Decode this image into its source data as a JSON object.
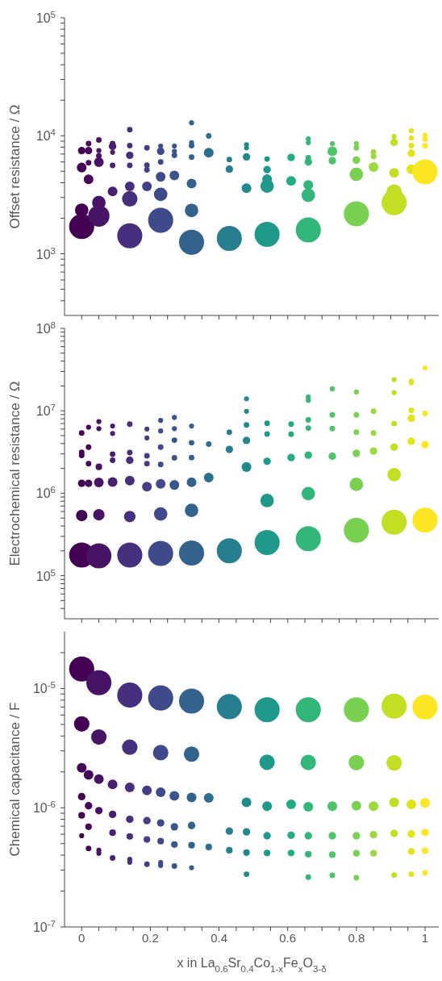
{
  "chart_data": [
    {
      "type": "bubble",
      "ylabel": "Offset resistance / Ω",
      "log": true,
      "marker": "circle",
      "tick_labels": "y",
      "xlim": [
        -0.05,
        1.04
      ],
      "xticks": [
        {
          "value": 0,
          "label": null
        },
        {
          "value": 0.05,
          "label": null
        },
        {
          "value": 0.1,
          "label": null
        },
        {
          "value": 0.15,
          "label": null
        },
        {
          "value": 0.2,
          "label": null
        },
        {
          "value": 0.25,
          "label": null
        },
        {
          "value": 0.3,
          "label": null
        },
        {
          "value": 0.35,
          "label": null
        },
        {
          "value": 0.4,
          "label": null
        },
        {
          "value": 0.45,
          "label": null
        },
        {
          "value": 0.5,
          "label": null
        },
        {
          "value": 0.55,
          "label": null
        },
        {
          "value": 0.6,
          "label": null
        },
        {
          "value": 0.65,
          "label": null
        },
        {
          "value": 0.7,
          "label": null
        },
        {
          "value": 0.75,
          "label": null
        },
        {
          "value": 0.8,
          "label": null
        },
        {
          "value": 0.85,
          "label": null
        },
        {
          "value": 0.9,
          "label": null
        },
        {
          "value": 0.95,
          "label": null
        },
        {
          "value": 1,
          "label": null
        }
      ],
      "ylim": [
        300,
        100000
      ],
      "yticks": [
        {
          "value": 400,
          "label": null
        },
        {
          "value": 500,
          "label": null
        },
        {
          "value": 600,
          "label": null
        },
        {
          "value": 700,
          "label": null
        },
        {
          "value": 800,
          "label": null
        },
        {
          "value": 900,
          "label": null
        },
        {
          "value": 1000,
          "label": "10$^{3}$"
        },
        {
          "value": 2000,
          "label": null
        },
        {
          "value": 3000,
          "label": null
        },
        {
          "value": 4000,
          "label": null
        },
        {
          "value": 5000,
          "label": null
        },
        {
          "value": 6000,
          "label": null
        },
        {
          "value": 7000,
          "label": null
        },
        {
          "value": 8000,
          "label": null
        },
        {
          "value": 9000,
          "label": null
        },
        {
          "value": 10000,
          "label": "10$^{4}$"
        },
        {
          "value": 20000,
          "label": null
        },
        {
          "value": 30000,
          "label": null
        },
        {
          "value": 40000,
          "label": null
        },
        {
          "value": 50000,
          "label": null
        },
        {
          "value": 60000,
          "label": null
        },
        {
          "value": 70000,
          "label": null
        },
        {
          "value": 80000,
          "label": null
        },
        {
          "value": 90000,
          "label": null
        },
        {
          "value": 100000,
          "label": "10$^{5}$"
        }
      ],
      "series": [
        {
          "color": "#440154",
          "x": [
            0,
            0,
            0,
            0
          ],
          "values": [
            7480,
            5380,
            2340,
            1700
          ],
          "sizes": [
            0.09,
            0.15,
            0.29,
            1
          ]
        },
        {
          "color": "#45085b",
          "x": [
            0.02,
            0.02,
            0.02,
            0.02
          ],
          "values": [
            8570,
            7480,
            5900,
            4280
          ],
          "sizes": [
            0.05,
            0.09,
            0.05,
            0.15
          ]
        },
        {
          "color": "#471365",
          "x": [
            0.05,
            0.05,
            0.05,
            0.05,
            0.05,
            0.05
          ],
          "values": [
            9200,
            7480,
            6760,
            5970,
            2710,
            2090
          ],
          "sizes": [
            0.05,
            0.04,
            0.05,
            0.15,
            0.29,
            0.72
          ]
        },
        {
          "color": "#48206f",
          "x": [
            0.09,
            0.09,
            0.09,
            0.09,
            0.09
          ],
          "values": [
            8570,
            8130,
            7230,
            5610,
            3380
          ],
          "sizes": [
            0.05,
            0.09,
            0.04,
            0.05,
            0.15
          ]
        },
        {
          "color": "#46307e",
          "x": [
            0.14,
            0.14,
            0.14,
            0.14,
            0.14,
            0.14,
            0.14
          ],
          "values": [
            11270,
            8260,
            6820,
            5610,
            3730,
            2920,
            1420
          ],
          "sizes": [
            0.05,
            0.05,
            0.09,
            0.05,
            0.15,
            0.38,
            1
          ]
        },
        {
          "color": "#433e85",
          "x": [
            0.19,
            0.19,
            0.19,
            0.19
          ],
          "values": [
            7890,
            5640,
            5140,
            3730
          ],
          "sizes": [
            0.05,
            0.05,
            0.05,
            0.15
          ]
        },
        {
          "color": "#3e4a89",
          "x": [
            0.23,
            0.23,
            0.23,
            0.23,
            0.23,
            0.23
          ],
          "values": [
            8180,
            7380,
            5990,
            4490,
            3190,
            1920
          ],
          "sizes": [
            0.04,
            0.09,
            0.05,
            0.15,
            0.29,
            1
          ]
        },
        {
          "color": "#39558c",
          "x": [
            0.27,
            0.27,
            0.27,
            0.27
          ],
          "values": [
            8180,
            7380,
            6820,
            4610
          ],
          "sizes": [
            0.04,
            0.04,
            0.05,
            0.15
          ]
        },
        {
          "color": "#33628d",
          "x": [
            0.32,
            0.32,
            0.32,
            0.32,
            0.32,
            0.32,
            0.32
          ],
          "values": [
            12880,
            8740,
            8260,
            6580,
            3930,
            2330,
            1250
          ],
          "sizes": [
            0.04,
            0.04,
            0.05,
            0.05,
            0.15,
            0.29,
            1
          ]
        },
        {
          "color": "#2d6f8e",
          "x": [
            0.37,
            0.37
          ],
          "values": [
            9950,
            7190
          ],
          "sizes": [
            0.05,
            0.15
          ]
        },
        {
          "color": "#277e8e",
          "x": [
            0.43,
            0.43,
            0.43
          ],
          "values": [
            6280,
            5210,
            1350
          ],
          "sizes": [
            0.05,
            0.09,
            1
          ]
        },
        {
          "color": "#228a8d",
          "x": [
            0.48,
            0.48,
            0.48,
            0.48
          ],
          "values": [
            8400,
            7890,
            6620,
            3600
          ],
          "sizes": [
            0.04,
            0.04,
            0.09,
            0.15
          ]
        },
        {
          "color": "#1f9a8a",
          "x": [
            0.54,
            0.54,
            0.54,
            0.54,
            0.54
          ],
          "values": [
            6350,
            5160,
            4290,
            3750,
            1460
          ],
          "sizes": [
            0.05,
            0.09,
            0.15,
            0.29,
            1
          ]
        },
        {
          "color": "#23ab82",
          "x": [
            0.61,
            0.61
          ],
          "values": [
            6550,
            4140
          ],
          "sizes": [
            0.09,
            0.15
          ]
        },
        {
          "color": "#32b67a",
          "x": [
            0.66,
            0.66,
            0.66,
            0.66,
            0.66,
            0.66,
            0.66
          ],
          "values": [
            9400,
            8740,
            6510,
            5990,
            3830,
            3130,
            1590
          ],
          "sizes": [
            0.04,
            0.04,
            0.05,
            0.09,
            0.15,
            0.29,
            1
          ]
        },
        {
          "color": "#50c46a",
          "x": [
            0.73,
            0.73,
            0.73
          ],
          "values": [
            8570,
            7380,
            6150
          ],
          "sizes": [
            0.04,
            0.15,
            0.09
          ]
        },
        {
          "color": "#7ad151",
          "x": [
            0.8,
            0.8,
            0.8,
            0.8,
            0.8
          ],
          "values": [
            8600,
            7890,
            6220,
            4710,
            2180
          ],
          "sizes": [
            0.04,
            0.05,
            0.09,
            0.29,
            1
          ]
        },
        {
          "color": "#9bd93c",
          "x": [
            0.85,
            0.85,
            0.85
          ],
          "values": [
            7260,
            6680,
            5440
          ],
          "sizes": [
            0.05,
            0.05,
            0.15
          ]
        },
        {
          "color": "#c2df23",
          "x": [
            0.91,
            0.91,
            0.91,
            0.91,
            0.91
          ],
          "values": [
            9850,
            8790,
            4850,
            3330,
            2710
          ],
          "sizes": [
            0.04,
            0.09,
            0.15,
            0.38,
            1
          ]
        },
        {
          "color": "#e2e418",
          "x": [
            0.96,
            0.96,
            0.96,
            0.96,
            0.96
          ],
          "values": [
            11030,
            9550,
            8260,
            7110,
            5210
          ],
          "sizes": [
            0.04,
            0.04,
            0.05,
            0.09,
            0.15
          ]
        },
        {
          "color": "#fde725",
          "x": [
            1,
            1,
            1,
            1
          ],
          "values": [
            10100,
            9350,
            8220,
            4950
          ],
          "sizes": [
            0.04,
            0.05,
            0.05,
            1
          ]
        }
      ]
    },
    {
      "type": "bubble",
      "ylabel": "Electrochemical resistance / Ω",
      "log": true,
      "marker": "circle",
      "tick_labels": "y",
      "xlim": [
        -0.05,
        1.04
      ],
      "xticks": [
        {
          "value": 0,
          "label": null
        },
        {
          "value": 0.05,
          "label": null
        },
        {
          "value": 0.1,
          "label": null
        },
        {
          "value": 0.15,
          "label": null
        },
        {
          "value": 0.2,
          "label": null
        },
        {
          "value": 0.25,
          "label": null
        },
        {
          "value": 0.3,
          "label": null
        },
        {
          "value": 0.35,
          "label": null
        },
        {
          "value": 0.4,
          "label": null
        },
        {
          "value": 0.45,
          "label": null
        },
        {
          "value": 0.5,
          "label": null
        },
        {
          "value": 0.55,
          "label": null
        },
        {
          "value": 0.6,
          "label": null
        },
        {
          "value": 0.65,
          "label": null
        },
        {
          "value": 0.7,
          "label": null
        },
        {
          "value": 0.75,
          "label": null
        },
        {
          "value": 0.8,
          "label": null
        },
        {
          "value": 0.85,
          "label": null
        },
        {
          "value": 0.9,
          "label": null
        },
        {
          "value": 0.95,
          "label": null
        },
        {
          "value": 1,
          "label": null
        }
      ],
      "ylim": [
        30000,
        100000000
      ],
      "yticks": [
        {
          "value": 40000,
          "label": null
        },
        {
          "value": 50000,
          "label": null
        },
        {
          "value": 60000,
          "label": null
        },
        {
          "value": 70000,
          "label": null
        },
        {
          "value": 80000,
          "label": null
        },
        {
          "value": 90000,
          "label": null
        },
        {
          "value": 100000,
          "label": "10$^{5}$"
        },
        {
          "value": 200000,
          "label": null
        },
        {
          "value": 300000,
          "label": null
        },
        {
          "value": 400000,
          "label": null
        },
        {
          "value": 500000,
          "label": null
        },
        {
          "value": 600000,
          "label": null
        },
        {
          "value": 700000,
          "label": null
        },
        {
          "value": 800000,
          "label": null
        },
        {
          "value": 900000,
          "label": null
        },
        {
          "value": 1000000,
          "label": "10$^{6}$"
        },
        {
          "value": 2000000,
          "label": null
        },
        {
          "value": 3000000,
          "label": null
        },
        {
          "value": 4000000,
          "label": null
        },
        {
          "value": 5000000,
          "label": null
        },
        {
          "value": 6000000,
          "label": null
        },
        {
          "value": 7000000,
          "label": null
        },
        {
          "value": 8000000,
          "label": null
        },
        {
          "value": 9000000,
          "label": null
        },
        {
          "value": 10000000,
          "label": "10$^{7}$"
        },
        {
          "value": 20000000,
          "label": null
        },
        {
          "value": 30000000,
          "label": null
        },
        {
          "value": 40000000,
          "label": null
        },
        {
          "value": 50000000,
          "label": null
        },
        {
          "value": 60000000,
          "label": null
        },
        {
          "value": 70000000,
          "label": null
        },
        {
          "value": 80000000,
          "label": null
        },
        {
          "value": 90000000,
          "label": null
        },
        {
          "value": 100000000,
          "label": "10$^{8}$"
        }
      ],
      "series": [
        {
          "color": "#440154",
          "x": [
            0,
            0,
            0,
            0,
            0,
            0
          ],
          "values": [
            5380000.0,
            3130000.0,
            2880000.0,
            1320000.0,
            536000.0,
            178000.0
          ],
          "sizes": [
            0.05,
            0.05,
            0.05,
            0.09,
            0.21,
            1
          ]
        },
        {
          "color": "#45085b",
          "x": [
            0.02,
            0.02,
            0.02,
            0.02
          ],
          "values": [
            6310000.0,
            3620000.0,
            2280000.0,
            1320000.0
          ],
          "sizes": [
            0.04,
            0.05,
            0.05,
            0.09
          ]
        },
        {
          "color": "#471365",
          "x": [
            0.05,
            0.05,
            0.05,
            0.05,
            0.05,
            0.05
          ],
          "values": [
            7390000.0,
            6080000.0,
            2090000.0,
            1350000.0,
            548000.0,
            174000.0
          ],
          "sizes": [
            0.04,
            0.04,
            0.07,
            0.15,
            0.21,
            1
          ]
        },
        {
          "color": "#48206f",
          "x": [
            0.09,
            0.09,
            0.09,
            0.09,
            0.09
          ],
          "values": [
            6530000.0,
            5310000.0,
            2980000.0,
            2510000.0,
            1370000.0
          ],
          "sizes": [
            0.04,
            0.04,
            0.05,
            0.05,
            0.15
          ]
        },
        {
          "color": "#46307e",
          "x": [
            0.14,
            0.14,
            0.14,
            0.14,
            0.14,
            0.14
          ],
          "values": [
            6870000.0,
            3110000.0,
            2510000.0,
            1420000.0,
            521000.0,
            178000.0
          ],
          "sizes": [
            0.05,
            0.05,
            0.09,
            0.15,
            0.21,
            1
          ]
        },
        {
          "color": "#433e85",
          "x": [
            0.19,
            0.19,
            0.19,
            0.19,
            0.19
          ],
          "values": [
            6000000.0,
            4690000.0,
            2850000.0,
            2280000.0,
            1200000.0
          ],
          "sizes": [
            0.04,
            0.04,
            0.05,
            0.05,
            0.15
          ]
        },
        {
          "color": "#3e4a89",
          "x": [
            0.23,
            0.23,
            0.23,
            0.23,
            0.23,
            0.23,
            0.23
          ],
          "values": [
            7660000.0,
            5700000.0,
            3620000.0,
            2230000.0,
            1300000.0,
            560000.0,
            186000.0
          ],
          "sizes": [
            0.04,
            0.04,
            0.05,
            0.05,
            0.15,
            0.29,
            1
          ]
        },
        {
          "color": "#39558c",
          "x": [
            0.27,
            0.27,
            0.27,
            0.27,
            0.27
          ],
          "values": [
            8300000.0,
            6080000.0,
            4400000.0,
            2690000.0,
            1260000.0
          ],
          "sizes": [
            0.04,
            0.04,
            0.05,
            0.05,
            0.15
          ]
        },
        {
          "color": "#33628d",
          "x": [
            0.32,
            0.32,
            0.32,
            0.32,
            0.32,
            0.32
          ],
          "values": [
            6530000.0,
            4090000.0,
            2710000.0,
            1360000.0,
            619000.0,
            188000.0
          ],
          "sizes": [
            0.04,
            0.05,
            0.05,
            0.15,
            0.29,
            1
          ]
        },
        {
          "color": "#2d6f8e",
          "x": [
            0.37,
            0.37
          ],
          "values": [
            3950000.0,
            1550000.0
          ],
          "sizes": [
            0.05,
            0.15
          ]
        },
        {
          "color": "#277e8e",
          "x": [
            0.43,
            0.43,
            0.43
          ],
          "values": [
            5500000.0,
            3400000.0,
            200000.0
          ],
          "sizes": [
            0.05,
            0.09,
            1
          ]
        },
        {
          "color": "#228a8d",
          "x": [
            0.48,
            0.48,
            0.48,
            0.48,
            0.48
          ],
          "values": [
            14000000.0,
            9860000.0,
            6730000.0,
            4370000.0,
            2080000.0
          ],
          "sizes": [
            0.04,
            0.04,
            0.05,
            0.09,
            0.15
          ]
        },
        {
          "color": "#1f9a8a",
          "x": [
            0.54,
            0.54,
            0.54,
            0.54,
            0.54
          ],
          "values": [
            7030000.0,
            5220000.0,
            2440000.0,
            815000.0,
            252000.0
          ],
          "sizes": [
            0.05,
            0.05,
            0.09,
            0.29,
            1
          ]
        },
        {
          "color": "#23ab82",
          "x": [
            0.61,
            0.61,
            0.61
          ],
          "values": [
            6870000.0,
            5190000.0,
            2710000.0
          ],
          "sizes": [
            0.05,
            0.05,
            0.09
          ]
        },
        {
          "color": "#32b67a",
          "x": [
            0.66,
            0.66,
            0.66,
            0.66,
            0.66,
            0.66,
            0.66
          ],
          "values": [
            14700000.0,
            13400000.0,
            7760000.0,
            6170000.0,
            2900000.0,
            989000.0,
            281000.0
          ],
          "sizes": [
            0.04,
            0.04,
            0.05,
            0.05,
            0.09,
            0.29,
            1
          ]
        },
        {
          "color": "#50c46a",
          "x": [
            0.73,
            0.73,
            0.73,
            0.73
          ],
          "values": [
            18500000.0,
            8910000.0,
            6080000.0,
            2810000.0
          ],
          "sizes": [
            0.04,
            0.05,
            0.05,
            0.09
          ]
        },
        {
          "color": "#7ad151",
          "x": [
            0.8,
            0.8,
            0.8,
            0.8,
            0.8,
            0.8
          ],
          "values": [
            16900000.0,
            8910000.0,
            5500000.0,
            3050000.0,
            1280000.0,
            356000.0
          ],
          "sizes": [
            0.04,
            0.05,
            0.05,
            0.09,
            0.29,
            1
          ]
        },
        {
          "color": "#9bd93c",
          "x": [
            0.85,
            0.85,
            0.85
          ],
          "values": [
            9860000.0,
            5380000.0,
            3250000.0
          ],
          "sizes": [
            0.05,
            0.05,
            0.09
          ]
        },
        {
          "color": "#c2df23",
          "x": [
            0.91,
            0.91,
            0.91,
            0.91,
            0.91,
            0.91
          ],
          "values": [
            23900000.0,
            16600000.0,
            6980000.0,
            3620000.0,
            1680000.0,
            445000.0
          ],
          "sizes": [
            0.04,
            0.04,
            0.05,
            0.09,
            0.29,
            1
          ]
        },
        {
          "color": "#e2e418",
          "x": [
            0.96,
            0.96,
            0.96,
            0.96,
            0.96
          ],
          "values": [
            22900000.0,
            21900000.0,
            10100000.0,
            8110000.0,
            4270000.0
          ],
          "sizes": [
            0.04,
            0.04,
            0.05,
            0.09,
            0.09
          ]
        },
        {
          "color": "#fde725",
          "x": [
            1,
            1,
            1,
            1
          ],
          "values": [
            33100000.0,
            9300000.0,
            3890000.0,
            471000.0
          ],
          "sizes": [
            0.04,
            0.05,
            0.09,
            1
          ]
        }
      ]
    },
    {
      "type": "bubble",
      "ylabel": "Chemical capacitance / F",
      "xlabel": "x in La$_{0.6}$Sr$_{0.4}$Co$_{1-x}$Fe$_{x}$O$_{3-δ}$",
      "log": true,
      "marker": "circle",
      "xlim": [
        -0.05,
        1.04
      ],
      "xticks": [
        0,
        {
          "value": 0.05,
          "label": null
        },
        {
          "value": 0.1,
          "label": null
        },
        {
          "value": 0.15,
          "label": null
        },
        0.2,
        {
          "value": 0.25,
          "label": null
        },
        {
          "value": 0.3,
          "label": null
        },
        {
          "value": 0.35,
          "label": null
        },
        0.4,
        {
          "value": 0.45,
          "label": null
        },
        {
          "value": 0.5,
          "label": null
        },
        {
          "value": 0.55,
          "label": null
        },
        0.6,
        {
          "value": 0.65,
          "label": null
        },
        {
          "value": 0.7,
          "label": null
        },
        {
          "value": 0.75,
          "label": null
        },
        0.8,
        {
          "value": 0.85,
          "label": null
        },
        {
          "value": 0.9,
          "label": null
        },
        {
          "value": 0.95,
          "label": null
        },
        1
      ],
      "ylim": [
        1e-07,
        3e-05
      ],
      "yticks": [
        {
          "value": 1e-07,
          "label": "10$^{-7}$"
        },
        {
          "value": 2e-07,
          "label": null
        },
        {
          "value": 3e-07,
          "label": null
        },
        {
          "value": 4e-07,
          "label": null
        },
        {
          "value": 5e-07,
          "label": null
        },
        {
          "value": 6e-07,
          "label": null
        },
        {
          "value": 7e-07,
          "label": null
        },
        {
          "value": 8e-07,
          "label": null
        },
        {
          "value": 9e-07,
          "label": null
        },
        {
          "value": 1e-06,
          "label": "10$^{-6}$"
        },
        {
          "value": 2e-06,
          "label": null
        },
        {
          "value": 3e-06,
          "label": null
        },
        {
          "value": 4e-06,
          "label": null
        },
        {
          "value": 5e-06,
          "label": null
        },
        {
          "value": 6e-06,
          "label": null
        },
        {
          "value": 7e-06,
          "label": null
        },
        {
          "value": 8e-06,
          "label": null
        },
        {
          "value": 9e-06,
          "label": null
        },
        {
          "value": 1e-05,
          "label": "10$^{-5}$"
        },
        {
          "value": 2e-05,
          "label": null
        }
      ],
      "series": [
        {
          "color": "#440154",
          "x": [
            0,
            0,
            0,
            0,
            0,
            0
          ],
          "values": [
            1.46e-05,
            5.05e-06,
            2.16e-06,
            1.24e-06,
            8.63e-07,
            5.82e-07
          ],
          "sizes": [
            1,
            0.38,
            0.15,
            0.09,
            0.07,
            0.04
          ]
        },
        {
          "color": "#45085b",
          "x": [
            0.02,
            0.02,
            0.02,
            0.02
          ],
          "values": [
            1.89e-06,
            1.04e-06,
            6.92e-07,
            4.56e-07
          ],
          "sizes": [
            0.15,
            0.09,
            0.07,
            0.05
          ]
        },
        {
          "color": "#471365",
          "x": [
            0.05,
            0.05,
            0.05,
            0.05,
            0.05,
            0.05
          ],
          "values": [
            1.12e-05,
            3.92e-06,
            1.74e-06,
            9.46e-07,
            4.4e-07,
            4.15e-07
          ],
          "sizes": [
            1,
            0.38,
            0.15,
            0.09,
            0.04,
            0.04
          ]
        },
        {
          "color": "#48206f",
          "x": [
            0.09,
            0.09,
            0.09,
            0.09
          ],
          "values": [
            1.57e-06,
            8.81e-07,
            6.18e-07,
            3.79e-07
          ],
          "sizes": [
            0.15,
            0.09,
            0.07,
            0.05
          ]
        },
        {
          "color": "#46307e",
          "x": [
            0.14,
            0.14,
            0.14,
            0.14,
            0.14,
            0.14,
            0.14
          ],
          "values": [
            8.81e-06,
            3.22e-06,
            1.48e-06,
            8e-07,
            5.75e-07,
            3.69e-07,
            3.49e-07
          ],
          "sizes": [
            1,
            0.38,
            0.15,
            0.09,
            0.07,
            0.04,
            0.04
          ]
        },
        {
          "color": "#433e85",
          "x": [
            0.19,
            0.19,
            0.19,
            0.19
          ],
          "values": [
            1.4e-06,
            7.8e-07,
            5.42e-07,
            3.36e-07
          ],
          "sizes": [
            0.15,
            0.09,
            0.07,
            0.05
          ]
        },
        {
          "color": "#3e4a89",
          "x": [
            0.23,
            0.23,
            0.23,
            0.23,
            0.23,
            0.23,
            0.23
          ],
          "values": [
            8.34e-06,
            2.9e-06,
            1.35e-06,
            7.46e-07,
            5.24e-07,
            3.47e-07,
            3.28e-07
          ],
          "sizes": [
            1,
            0.38,
            0.15,
            0.09,
            0.07,
            0.04,
            0.04
          ]
        },
        {
          "color": "#39558c",
          "x": [
            0.27,
            0.27,
            0.27,
            0.27
          ],
          "values": [
            1.26e-06,
            6.92e-07,
            4.92e-07,
            3.24e-07
          ],
          "sizes": [
            0.15,
            0.09,
            0.07,
            0.05
          ]
        },
        {
          "color": "#33628d",
          "x": [
            0.32,
            0.32,
            0.32,
            0.32,
            0.32,
            0.32
          ],
          "values": [
            7.85e-06,
            2.82e-06,
            1.22e-06,
            7.1e-07,
            4.85e-07,
            3.14e-07
          ],
          "sizes": [
            1,
            0.38,
            0.15,
            0.09,
            0.07,
            0.04
          ]
        },
        {
          "color": "#2d6f8e",
          "x": [
            0.37,
            0.37
          ],
          "values": [
            1.21e-06,
            4.68e-07
          ],
          "sizes": [
            0.15,
            0.07
          ]
        },
        {
          "color": "#277e8e",
          "x": [
            0.43,
            0.43,
            0.43
          ],
          "values": [
            7.05e-06,
            6.37e-07,
            4.4e-07
          ],
          "sizes": [
            1,
            0.09,
            0.07
          ]
        },
        {
          "color": "#228a8d",
          "x": [
            0.48,
            0.48,
            0.48,
            0.48
          ],
          "values": [
            1.11e-06,
            6.28e-07,
            4.21e-07,
            2.77e-07
          ],
          "sizes": [
            0.15,
            0.09,
            0.07,
            0.05
          ]
        },
        {
          "color": "#1f9a8a",
          "x": [
            0.54,
            0.54,
            0.54,
            0.54,
            0.54
          ],
          "values": [
            6.64e-06,
            2.41e-06,
            1.03e-06,
            5.82e-07,
            4.17e-07
          ],
          "sizes": [
            1,
            0.38,
            0.15,
            0.09,
            0.07
          ]
        },
        {
          "color": "#23ab82",
          "x": [
            0.61,
            0.61,
            0.61
          ],
          "values": [
            1.07e-06,
            5.88e-07,
            4.17e-07
          ],
          "sizes": [
            0.15,
            0.09,
            0.07
          ]
        },
        {
          "color": "#32b67a",
          "x": [
            0.66,
            0.66,
            0.66,
            0.66,
            0.66,
            0.66
          ],
          "values": [
            6.64e-06,
            2.4e-06,
            1.02e-06,
            5.82e-07,
            4.08e-07,
            2.62e-07
          ],
          "sizes": [
            1,
            0.38,
            0.15,
            0.09,
            0.07,
            0.05
          ]
        },
        {
          "color": "#50c46a",
          "x": [
            0.73,
            0.73,
            0.73,
            0.73
          ],
          "values": [
            1.03e-06,
            5.82e-07,
            4.04e-07,
            2.71e-07
          ],
          "sizes": [
            0.15,
            0.09,
            0.07,
            0.05
          ]
        },
        {
          "color": "#7ad151",
          "x": [
            0.8,
            0.8,
            0.8,
            0.8,
            0.8,
            0.8
          ],
          "values": [
            6.64e-06,
            2.39e-06,
            1.04e-06,
            5.82e-07,
            4.15e-07,
            2.59e-07
          ],
          "sizes": [
            1,
            0.38,
            0.15,
            0.09,
            0.07,
            0.05
          ]
        },
        {
          "color": "#9bd93c",
          "x": [
            0.85,
            0.85,
            0.85
          ],
          "values": [
            1.03e-06,
            5.94e-07,
            4.15e-07
          ],
          "sizes": [
            0.15,
            0.09,
            0.07
          ]
        },
        {
          "color": "#c2df23",
          "x": [
            0.91,
            0.91,
            0.91,
            0.91,
            0.91
          ],
          "values": [
            7.13e-06,
            2.38e-06,
            1.11e-06,
            6.1e-07,
            2.72e-07
          ],
          "sizes": [
            1,
            0.38,
            0.15,
            0.09,
            0.05
          ]
        },
        {
          "color": "#e2e418",
          "x": [
            0.96,
            0.96,
            0.96,
            0.96
          ],
          "values": [
            1.07e-06,
            6.03e-07,
            4.3e-07,
            2.77e-07
          ],
          "sizes": [
            0.15,
            0.09,
            0.07,
            0.05
          ]
        },
        {
          "color": "#fde725",
          "x": [
            1,
            1,
            1,
            1,
            1
          ],
          "values": [
            6.98e-06,
            1.1e-06,
            6.21e-07,
            4.36e-07,
            2.84e-07
          ],
          "sizes": [
            1,
            0.15,
            0.09,
            0.07,
            0.05
          ]
        }
      ]
    }
  ]
}
